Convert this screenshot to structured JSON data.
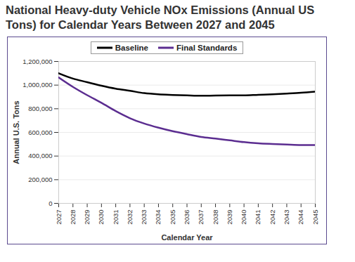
{
  "chart_data": {
    "type": "line",
    "title": "National Heavy-duty Vehicle NOx Emissions (Annual US Tons) for Calendar Years Between 2027 and 2045",
    "xlabel": "Calendar Year",
    "ylabel": "Annual U.S. Tons",
    "x": [
      2027,
      2028,
      2029,
      2030,
      2031,
      2032,
      2033,
      2034,
      2035,
      2036,
      2037,
      2038,
      2039,
      2040,
      2041,
      2042,
      2043,
      2044,
      2045
    ],
    "series": [
      {
        "name": "Baseline",
        "color": "#000000",
        "values": [
          1100000,
          1055000,
          1025000,
          995000,
          970000,
          952000,
          932000,
          922000,
          917000,
          913000,
          910000,
          912000,
          913000,
          913000,
          918000,
          922000,
          928000,
          935000,
          945000
        ]
      },
      {
        "name": "Final Standards",
        "color": "#5b2d90",
        "values": [
          1065000,
          985000,
          915000,
          850000,
          780000,
          720000,
          675000,
          640000,
          610000,
          585000,
          562000,
          548000,
          533000,
          518000,
          508000,
          502000,
          497000,
          493000,
          493000
        ]
      }
    ],
    "xlim": [
      2027,
      2045
    ],
    "xticks": [
      2027,
      2028,
      2029,
      2030,
      2031,
      2032,
      2033,
      2034,
      2035,
      2036,
      2037,
      2038,
      2039,
      2040,
      2041,
      2042,
      2043,
      2044,
      2045
    ],
    "ylim": [
      0,
      1200000
    ],
    "yticks": [
      0,
      {
        "value": 200000,
        "label": "200,000"
      },
      {
        "value": 400000,
        "label": "400,000"
      },
      {
        "value": 600000,
        "label": "600,000"
      },
      {
        "value": 800000,
        "label": "800,000"
      },
      {
        "value": 1000000,
        "label": "1,000,000"
      },
      {
        "value": 1200000,
        "label": "1,200,000"
      }
    ],
    "grid": true,
    "legend": "top"
  }
}
